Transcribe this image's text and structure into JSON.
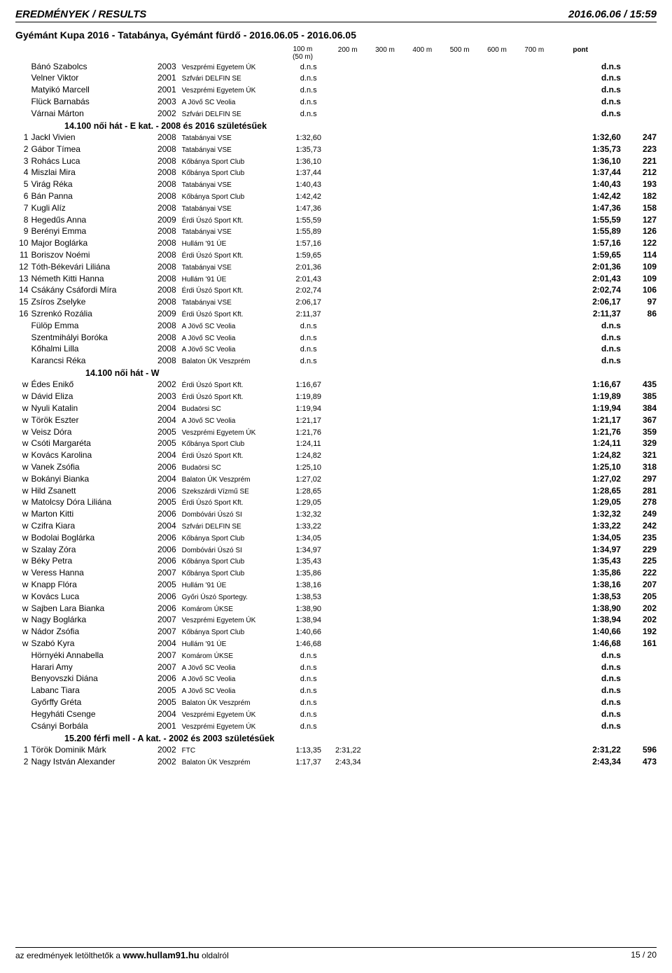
{
  "header": {
    "left": "EREDMÉNYEK / RESULTS",
    "right": "2016.06.06 / 15:59"
  },
  "event_title": "Gyémánt Kupa 2016 - Tatabánya, Gyémánt fürdő - 2016.06.05 - 2016.06.05",
  "col_headers": {
    "c100m_a": "100 m",
    "c100m_b": "(50 m)",
    "c200m": "200 m",
    "c300m": "300 m",
    "c400m": "400 m",
    "c500m": "500 m",
    "c600m": "600 m",
    "c700m": "700 m",
    "pont": "pont"
  },
  "sections": [
    {
      "pre_rows": [
        {
          "rank": "",
          "name": "Bánó Szabolcs",
          "year": "2003",
          "club": "Veszprémi Egyetem ÚK",
          "t100": "d.n.s",
          "total": "d.n.s",
          "pts": ""
        },
        {
          "rank": "",
          "name": "Velner Viktor",
          "year": "2001",
          "club": "Szfvári DELFIN SE",
          "t100": "d.n.s",
          "total": "d.n.s",
          "pts": ""
        },
        {
          "rank": "",
          "name": "Matyikó Marcell",
          "year": "2001",
          "club": "Veszprémi Egyetem ÚK",
          "t100": "d.n.s",
          "total": "d.n.s",
          "pts": ""
        },
        {
          "rank": "",
          "name": "Flück Barnabás",
          "year": "2003",
          "club": "A Jövő SC Veolia",
          "t100": "d.n.s",
          "total": "d.n.s",
          "pts": ""
        },
        {
          "rank": "",
          "name": "Várnai Márton",
          "year": "2002",
          "club": "Szfvári DELFIN SE",
          "t100": "d.n.s",
          "total": "d.n.s",
          "pts": ""
        }
      ],
      "title": "14.100 női hát - E kat. - 2008 és 2016 születésűek",
      "rows": [
        {
          "rank": "1",
          "name": "Jackl Vivien",
          "year": "2008",
          "club": "Tatabányai VSE",
          "t100": "1:32,60",
          "total": "1:32,60",
          "pts": "247"
        },
        {
          "rank": "2",
          "name": "Gábor Tímea",
          "year": "2008",
          "club": "Tatabányai VSE",
          "t100": "1:35,73",
          "total": "1:35,73",
          "pts": "223"
        },
        {
          "rank": "3",
          "name": "Rohács Luca",
          "year": "2008",
          "club": "Kőbánya Sport Club",
          "t100": "1:36,10",
          "total": "1:36,10",
          "pts": "221"
        },
        {
          "rank": "4",
          "name": "Miszlai Mira",
          "year": "2008",
          "club": "Kőbánya Sport Club",
          "t100": "1:37,44",
          "total": "1:37,44",
          "pts": "212"
        },
        {
          "rank": "5",
          "name": "Virág Réka",
          "year": "2008",
          "club": "Tatabányai VSE",
          "t100": "1:40,43",
          "total": "1:40,43",
          "pts": "193"
        },
        {
          "rank": "6",
          "name": "Bán Panna",
          "year": "2008",
          "club": "Kőbánya Sport Club",
          "t100": "1:42,42",
          "total": "1:42,42",
          "pts": "182"
        },
        {
          "rank": "7",
          "name": "Kugli Alíz",
          "year": "2008",
          "club": "Tatabányai VSE",
          "t100": "1:47,36",
          "total": "1:47,36",
          "pts": "158"
        },
        {
          "rank": "8",
          "name": "Hegedűs Anna",
          "year": "2009",
          "club": "Érdi Úszó Sport Kft.",
          "t100": "1:55,59",
          "total": "1:55,59",
          "pts": "127"
        },
        {
          "rank": "9",
          "name": "Berényi Emma",
          "year": "2008",
          "club": "Tatabányai VSE",
          "t100": "1:55,89",
          "total": "1:55,89",
          "pts": "126"
        },
        {
          "rank": "10",
          "name": "Major Boglárka",
          "year": "2008",
          "club": "Hullám '91 ÚE",
          "t100": "1:57,16",
          "total": "1:57,16",
          "pts": "122"
        },
        {
          "rank": "11",
          "name": "Boriszov Noémi",
          "year": "2008",
          "club": "Érdi Úszó Sport Kft.",
          "t100": "1:59,65",
          "total": "1:59,65",
          "pts": "114"
        },
        {
          "rank": "12",
          "name": "Tóth-Békevári Liliána",
          "year": "2008",
          "club": "Tatabányai VSE",
          "t100": "2:01,36",
          "total": "2:01,36",
          "pts": "109"
        },
        {
          "rank": "13",
          "name": "Németh Kitti Hanna",
          "year": "2008",
          "club": "Hullám '91 ÚE",
          "t100": "2:01,43",
          "total": "2:01,43",
          "pts": "109"
        },
        {
          "rank": "14",
          "name": "Csákány Csáfordi Míra",
          "year": "2008",
          "club": "Érdi Úszó Sport Kft.",
          "t100": "2:02,74",
          "total": "2:02,74",
          "pts": "106"
        },
        {
          "rank": "15",
          "name": "Zsíros Zselyke",
          "year": "2008",
          "club": "Tatabányai VSE",
          "t100": "2:06,17",
          "total": "2:06,17",
          "pts": "97"
        },
        {
          "rank": "16",
          "name": "Szrenkó Rozália",
          "year": "2009",
          "club": "Érdi Úszó Sport Kft.",
          "t100": "2:11,37",
          "total": "2:11,37",
          "pts": "86"
        },
        {
          "rank": "",
          "name": "Fülöp Emma",
          "year": "2008",
          "club": "A Jövő SC Veolia",
          "t100": "d.n.s",
          "total": "d.n.s",
          "pts": ""
        },
        {
          "rank": "",
          "name": "Szentmihályi Boróka",
          "year": "2008",
          "club": "A Jövő SC Veolia",
          "t100": "d.n.s",
          "total": "d.n.s",
          "pts": ""
        },
        {
          "rank": "",
          "name": "Kőhalmi Lilla",
          "year": "2008",
          "club": "A Jövő SC Veolia",
          "t100": "d.n.s",
          "total": "d.n.s",
          "pts": ""
        },
        {
          "rank": "",
          "name": "Karancsi Réka",
          "year": "2008",
          "club": "Balaton ÚK Veszprém",
          "t100": "d.n.s",
          "total": "d.n.s",
          "pts": ""
        }
      ]
    },
    {
      "title": "14.100 női hát - W",
      "title_center": true,
      "rows": [
        {
          "rank": "w",
          "name": "Édes Enikő",
          "year": "2002",
          "club": "Érdi Úszó Sport Kft.",
          "t100": "1:16,67",
          "total": "1:16,67",
          "pts": "435"
        },
        {
          "rank": "w",
          "name": "Dávid Eliza",
          "year": "2003",
          "club": "Érdi Úszó Sport Kft.",
          "t100": "1:19,89",
          "total": "1:19,89",
          "pts": "385"
        },
        {
          "rank": "w",
          "name": "Nyuli Katalin",
          "year": "2004",
          "club": "Budaörsi SC",
          "t100": "1:19,94",
          "total": "1:19,94",
          "pts": "384"
        },
        {
          "rank": "w",
          "name": "Török Eszter",
          "year": "2004",
          "club": "A Jövő SC Veolia",
          "t100": "1:21,17",
          "total": "1:21,17",
          "pts": "367"
        },
        {
          "rank": "w",
          "name": "Veisz Dóra",
          "year": "2005",
          "club": "Veszprémi Egyetem ÚK",
          "t100": "1:21,76",
          "total": "1:21,76",
          "pts": "359"
        },
        {
          "rank": "w",
          "name": "Csóti Margaréta",
          "year": "2005",
          "club": "Kőbánya Sport Club",
          "t100": "1:24,11",
          "total": "1:24,11",
          "pts": "329"
        },
        {
          "rank": "w",
          "name": "Kovács Karolina",
          "year": "2004",
          "club": "Érdi Úszó Sport Kft.",
          "t100": "1:24,82",
          "total": "1:24,82",
          "pts": "321"
        },
        {
          "rank": "w",
          "name": "Vanek Zsófia",
          "year": "2006",
          "club": "Budaörsi SC",
          "t100": "1:25,10",
          "total": "1:25,10",
          "pts": "318"
        },
        {
          "rank": "w",
          "name": "Bokányi Bianka",
          "year": "2004",
          "club": "Balaton ÚK Veszprém",
          "t100": "1:27,02",
          "total": "1:27,02",
          "pts": "297"
        },
        {
          "rank": "w",
          "name": "Hild Zsanett",
          "year": "2006",
          "club": "Szekszárdi Vízmű SE",
          "t100": "1:28,65",
          "total": "1:28,65",
          "pts": "281"
        },
        {
          "rank": "w",
          "name": "Matolcsy Dóra Liliána",
          "year": "2005",
          "club": "Érdi Úszó Sport Kft.",
          "t100": "1:29,05",
          "total": "1:29,05",
          "pts": "278"
        },
        {
          "rank": "w",
          "name": "Marton Kitti",
          "year": "2006",
          "club": "Dombóvári Úszó SI",
          "t100": "1:32,32",
          "total": "1:32,32",
          "pts": "249"
        },
        {
          "rank": "w",
          "name": "Czifra Kiara",
          "year": "2004",
          "club": "Szfvári DELFIN SE",
          "t100": "1:33,22",
          "total": "1:33,22",
          "pts": "242"
        },
        {
          "rank": "w",
          "name": "Bodolai Boglárka",
          "year": "2006",
          "club": "Kőbánya Sport Club",
          "t100": "1:34,05",
          "total": "1:34,05",
          "pts": "235"
        },
        {
          "rank": "w",
          "name": "Szalay Zóra",
          "year": "2006",
          "club": "Dombóvári Úszó SI",
          "t100": "1:34,97",
          "total": "1:34,97",
          "pts": "229"
        },
        {
          "rank": "w",
          "name": "Béky Petra",
          "year": "2006",
          "club": "Kőbánya Sport Club",
          "t100": "1:35,43",
          "total": "1:35,43",
          "pts": "225"
        },
        {
          "rank": "w",
          "name": "Veress Hanna",
          "year": "2007",
          "club": "Kőbánya Sport Club",
          "t100": "1:35,86",
          "total": "1:35,86",
          "pts": "222"
        },
        {
          "rank": "w",
          "name": "Knapp Flóra",
          "year": "2005",
          "club": "Hullám '91 ÚE",
          "t100": "1:38,16",
          "total": "1:38,16",
          "pts": "207"
        },
        {
          "rank": "w",
          "name": "Kovács Luca",
          "year": "2006",
          "club": "Győri Úszó Sportegy.",
          "t100": "1:38,53",
          "total": "1:38,53",
          "pts": "205"
        },
        {
          "rank": "w",
          "name": "Sajben Lara Bianka",
          "year": "2006",
          "club": "Komárom ÚKSE",
          "t100": "1:38,90",
          "total": "1:38,90",
          "pts": "202"
        },
        {
          "rank": "w",
          "name": "Nagy Boglárka",
          "year": "2007",
          "club": "Veszprémi Egyetem ÚK",
          "t100": "1:38,94",
          "total": "1:38,94",
          "pts": "202"
        },
        {
          "rank": "w",
          "name": "Nádor Zsófia",
          "year": "2007",
          "club": "Kőbánya Sport Club",
          "t100": "1:40,66",
          "total": "1:40,66",
          "pts": "192"
        },
        {
          "rank": "w",
          "name": "Szabó Kyra",
          "year": "2004",
          "club": "Hullám '91 ÚE",
          "t100": "1:46,68",
          "total": "1:46,68",
          "pts": "161"
        },
        {
          "rank": "",
          "name": "Hörnyéki Annabella",
          "year": "2007",
          "club": "Komárom ÚKSE",
          "t100": "d.n.s",
          "total": "d.n.s",
          "pts": ""
        },
        {
          "rank": "",
          "name": "Harari Amy",
          "year": "2007",
          "club": "A Jövő SC Veolia",
          "t100": "d.n.s",
          "total": "d.n.s",
          "pts": ""
        },
        {
          "rank": "",
          "name": "Benyovszki Diána",
          "year": "2006",
          "club": "A Jövő SC Veolia",
          "t100": "d.n.s",
          "total": "d.n.s",
          "pts": ""
        },
        {
          "rank": "",
          "name": "Labanc Tiara",
          "year": "2005",
          "club": "A Jövő SC Veolia",
          "t100": "d.n.s",
          "total": "d.n.s",
          "pts": ""
        },
        {
          "rank": "",
          "name": "Győrffy Gréta",
          "year": "2005",
          "club": "Balaton ÚK Veszprém",
          "t100": "d.n.s",
          "total": "d.n.s",
          "pts": ""
        },
        {
          "rank": "",
          "name": "Hegyháti Csenge",
          "year": "2004",
          "club": "Veszprémi Egyetem ÚK",
          "t100": "d.n.s",
          "total": "d.n.s",
          "pts": ""
        },
        {
          "rank": "",
          "name": "Csányi Borbála",
          "year": "2001",
          "club": "Veszprémi Egyetem ÚK",
          "t100": "d.n.s",
          "total": "d.n.s",
          "pts": ""
        }
      ]
    },
    {
      "title": "15.200 férfi mell - A kat. - 2002 és 2003 születésűek",
      "rows": [
        {
          "rank": "1",
          "name": "Török Dominik Márk",
          "year": "2002",
          "club": "FTC",
          "t100": "1:13,35",
          "t200": "2:31,22",
          "total": "2:31,22",
          "pts": "596"
        },
        {
          "rank": "2",
          "name": "Nagy István Alexander",
          "year": "2002",
          "club": "Balaton ÚK Veszprém",
          "t100": "1:17,37",
          "t200": "2:43,34",
          "total": "2:43,34",
          "pts": "473"
        }
      ]
    }
  ],
  "footer": {
    "left_pre": "az eredmények letölthetők a ",
    "left_bold": "www.hullam91.hu",
    "left_post": " oldalról",
    "right": "15 / 20"
  }
}
